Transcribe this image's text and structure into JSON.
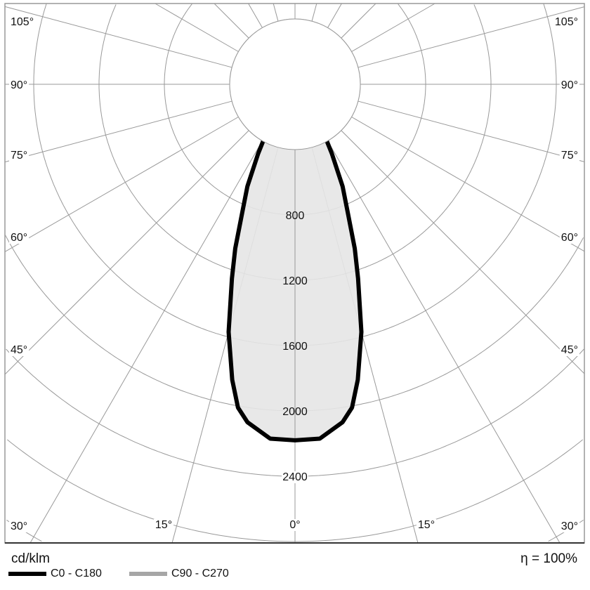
{
  "chart_data": {
    "type": "polar",
    "unit_label": "cd/klm",
    "efficiency_label": "η = 100%",
    "radial_ticks": [
      400,
      800,
      1200,
      1600,
      2000,
      2400,
      2800,
      3200,
      3600
    ],
    "radial_tick_labels": [
      "800",
      "1200",
      "1600",
      "2000",
      "2400"
    ],
    "angle_step_deg": 15,
    "angle_labels": {
      "left": [
        "105°",
        "90°",
        "75°",
        "60°",
        "45°",
        "30°"
      ],
      "bottom": [
        "30°",
        "15°",
        "0°",
        "15°",
        "30°"
      ],
      "right": [
        "105°",
        "90°",
        "75°",
        "60°",
        "45°",
        "30°"
      ]
    },
    "legend": [
      {
        "name": "C0 - C180",
        "color": "#000000"
      },
      {
        "name": "C90 - C270",
        "color": "#a6a6a6"
      }
    ],
    "series": [
      {
        "name": "C0 - C180",
        "color": "#000000",
        "fill": "#e6e6e6",
        "gamma_deg": [
          0,
          4,
          8,
          10,
          12,
          15,
          18,
          20,
          22.5,
          25,
          28,
          30,
          33,
          36,
          40
        ],
        "cd": [
          2180,
          2175,
          2090,
          2010,
          1850,
          1570,
          1250,
          1070,
          840,
          690,
          480,
          365,
          180,
          40,
          0
        ]
      }
    ]
  }
}
